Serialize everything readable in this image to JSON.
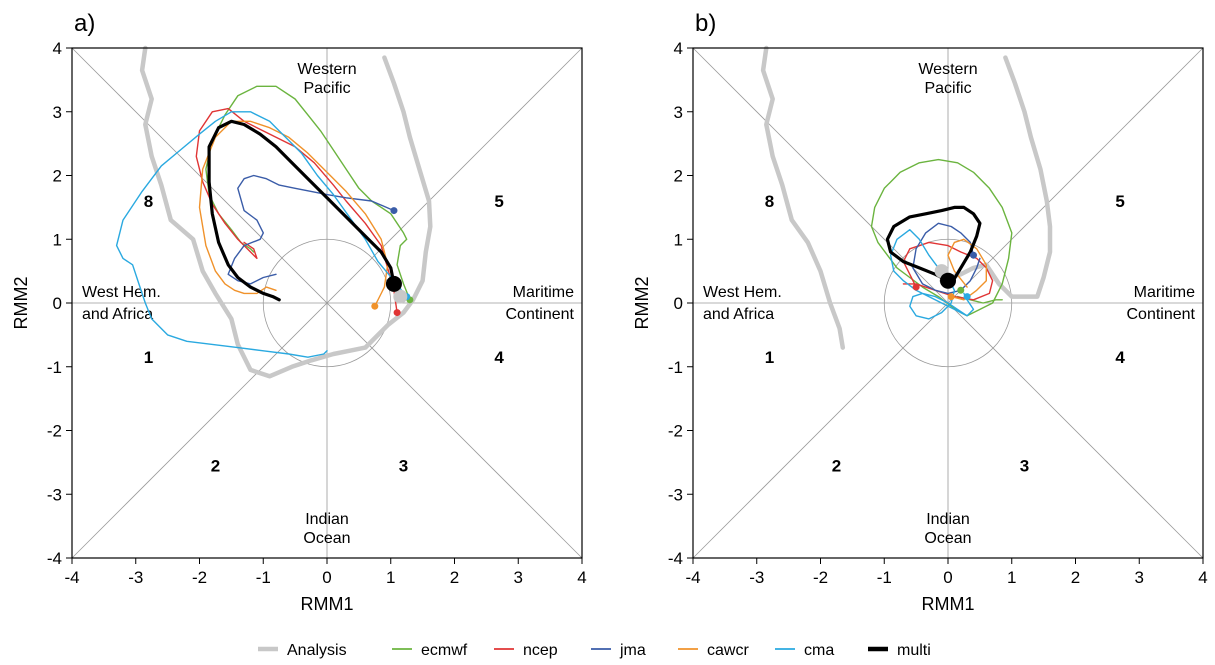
{
  "legend": [
    {
      "name": "Analysis",
      "color": "#c8c8c8",
      "width": "thick"
    },
    {
      "name": "ecmwf",
      "color": "#6bb43f",
      "width": "thin"
    },
    {
      "name": "ncep",
      "color": "#e03535",
      "width": "thin"
    },
    {
      "name": "jma",
      "color": "#3a5ca8",
      "width": "thin"
    },
    {
      "name": "cawcr",
      "color": "#f0922b",
      "width": "thin"
    },
    {
      "name": "cma",
      "color": "#2aa9e0",
      "width": "thin"
    },
    {
      "name": "multi",
      "color": "#000000",
      "width": "thick"
    }
  ],
  "chart_data": [
    {
      "type": "line",
      "panel_label": "a)",
      "xlabel": "RMM1",
      "ylabel": "RMM2",
      "xlim": [
        -4,
        4
      ],
      "ylim": [
        -4,
        4
      ],
      "xticks": [
        -4,
        -3,
        -2,
        -1,
        0,
        1,
        2,
        3,
        4
      ],
      "yticks": [
        -4,
        -3,
        -2,
        -1,
        0,
        1,
        2,
        3,
        4
      ],
      "region_labels": {
        "top": [
          "Western",
          "Pacific"
        ],
        "bottom": [
          "Indian",
          "Ocean"
        ],
        "left": [
          "West Hem.",
          "and Africa"
        ],
        "right": [
          "Maritime",
          "Continent"
        ]
      },
      "phase_numbers": [
        {
          "label": "1",
          "x": -2.8,
          "y": -0.85
        },
        {
          "label": "2",
          "x": -1.75,
          "y": -2.55
        },
        {
          "label": "3",
          "x": 1.2,
          "y": -2.55
        },
        {
          "label": "4",
          "x": 2.7,
          "y": -0.85
        },
        {
          "label": "5",
          "x": 2.7,
          "y": 1.6
        },
        {
          "label": "8",
          "x": -2.8,
          "y": 1.6
        }
      ],
      "series": [
        {
          "name": "Analysis",
          "x": [
            -2.85,
            -2.9,
            -2.75,
            -2.85,
            -2.75,
            -2.6,
            -2.45,
            -2.1,
            -1.95,
            -1.75,
            -1.5,
            -1.4,
            -1.2,
            -0.9,
            -0.55,
            -0.25,
            0.1,
            0.35,
            0.6,
            0.75,
            0.95,
            1.2,
            1.35,
            1.5,
            1.55,
            1.62,
            1.6,
            1.45,
            1.3,
            1.2,
            1.05,
            0.9
          ],
          "y": [
            4.0,
            3.65,
            3.2,
            2.8,
            2.3,
            1.85,
            1.3,
            1.0,
            0.5,
            0.15,
            -0.25,
            -0.65,
            -1.05,
            -1.15,
            -1.0,
            -0.9,
            -0.8,
            -0.75,
            -0.7,
            -0.55,
            -0.35,
            -0.15,
            0.05,
            0.35,
            0.8,
            1.2,
            1.6,
            2.1,
            2.6,
            3.0,
            3.45,
            3.85
          ]
        },
        {
          "name": "ecmwf",
          "x": [
            1.3,
            1.2,
            1.1,
            1.15,
            1.25,
            1.2,
            1.0,
            0.7,
            0.5,
            0.3,
            0.1,
            -0.1,
            -0.3,
            -0.5,
            -0.8,
            -1.1,
            -1.4,
            -1.6,
            -1.8,
            -1.9,
            -1.85,
            -1.7,
            -1.5,
            -1.35,
            -1.2,
            -1.15
          ],
          "y": [
            0.05,
            0.3,
            0.6,
            0.9,
            1.0,
            1.1,
            1.4,
            1.6,
            1.8,
            2.1,
            2.4,
            2.7,
            2.95,
            3.2,
            3.4,
            3.4,
            3.25,
            2.95,
            2.55,
            2.1,
            1.7,
            1.4,
            1.15,
            0.95,
            0.85,
            0.8
          ]
        },
        {
          "name": "ncep",
          "x": [
            1.1,
            1.05,
            0.95,
            0.85,
            0.6,
            0.3,
            0.1,
            -0.2,
            -0.5,
            -0.8,
            -1.1,
            -1.3,
            -1.55,
            -1.8,
            -2.0,
            -2.05,
            -1.95,
            -1.8,
            -1.6,
            -1.4,
            -1.25,
            -1.1,
            -1.15,
            -1.3
          ],
          "y": [
            -0.15,
            0.2,
            0.55,
            0.9,
            1.25,
            1.6,
            1.85,
            2.2,
            2.45,
            2.6,
            2.75,
            2.85,
            3.05,
            3.0,
            2.7,
            2.3,
            1.9,
            1.55,
            1.25,
            1.0,
            0.85,
            0.7,
            0.85,
            0.95
          ]
        },
        {
          "name": "jma",
          "x": [
            1.05,
            0.7,
            0.3,
            0.0,
            -0.25,
            -0.5,
            -0.75,
            -0.95,
            -1.15,
            -1.3,
            -1.4,
            -1.3,
            -1.1,
            -1.0,
            -1.05,
            -1.3,
            -1.45,
            -1.55,
            -1.4,
            -1.2,
            -1.0,
            -0.8
          ],
          "y": [
            1.45,
            1.6,
            1.65,
            1.7,
            1.75,
            1.8,
            1.85,
            1.95,
            2.0,
            1.95,
            1.8,
            1.45,
            1.3,
            1.1,
            1.0,
            0.9,
            0.7,
            0.45,
            0.35,
            0.3,
            0.4,
            0.45
          ]
        },
        {
          "name": "cawcr",
          "x": [
            0.75,
            0.9,
            0.95,
            0.85,
            0.6,
            0.3,
            0.0,
            -0.3,
            -0.6,
            -0.9,
            -1.2,
            -1.5,
            -1.75,
            -1.95,
            -2.0,
            -1.9,
            -1.75,
            -1.6,
            -1.45,
            -1.3,
            -1.1,
            -0.95,
            -0.8
          ],
          "y": [
            -0.05,
            0.25,
            0.6,
            1.0,
            1.4,
            1.75,
            2.05,
            2.35,
            2.6,
            2.75,
            2.85,
            2.85,
            2.6,
            2.1,
            1.5,
            0.9,
            0.5,
            0.3,
            0.2,
            0.15,
            0.15,
            0.25,
            0.2
          ]
        },
        {
          "name": "cma",
          "x": [
            1.25,
            1.05,
            0.8,
            0.6,
            0.35,
            0.1,
            -0.15,
            -0.4,
            -0.65,
            -0.9,
            -1.2,
            -1.5,
            -1.75,
            -2.0,
            -2.3,
            -2.6,
            -2.9,
            -3.2,
            -3.3,
            -3.2,
            -3.05,
            -2.95,
            -2.85,
            -2.75,
            -2.5,
            -2.2,
            -1.8,
            -1.4,
            -1.0,
            -0.6,
            -0.3,
            -0.05,
            0.0
          ],
          "y": [
            0.1,
            0.35,
            0.65,
            1.0,
            1.35,
            1.7,
            2.0,
            2.35,
            2.6,
            2.85,
            3.0,
            3.0,
            2.85,
            2.65,
            2.4,
            2.15,
            1.75,
            1.3,
            0.9,
            0.7,
            0.6,
            0.3,
            0.0,
            -0.25,
            -0.5,
            -0.6,
            -0.65,
            -0.7,
            -0.75,
            -0.8,
            -0.85,
            -0.8,
            -0.75
          ]
        },
        {
          "name": "multi",
          "x": [
            1.05,
            1.0,
            0.85,
            0.6,
            0.3,
            0.0,
            -0.3,
            -0.55,
            -0.8,
            -1.05,
            -1.3,
            -1.5,
            -1.7,
            -1.85,
            -1.85,
            -1.8,
            -1.7,
            -1.55,
            -1.4,
            -1.2,
            -1.0,
            -0.85,
            -0.75
          ],
          "y": [
            0.3,
            0.55,
            0.8,
            1.05,
            1.35,
            1.65,
            1.95,
            2.2,
            2.45,
            2.65,
            2.8,
            2.85,
            2.75,
            2.45,
            1.9,
            1.4,
            0.95,
            0.6,
            0.4,
            0.25,
            0.15,
            0.1,
            0.05
          ]
        }
      ],
      "start_points": [
        {
          "name": "ecmwf",
          "x": 1.3,
          "y": 0.05
        },
        {
          "name": "ncep",
          "x": 1.1,
          "y": -0.15
        },
        {
          "name": "jma",
          "x": 1.05,
          "y": 1.45
        },
        {
          "name": "cawcr",
          "x": 0.75,
          "y": -0.05
        },
        {
          "name": "cma",
          "x": 1.25,
          "y": 0.1
        },
        {
          "name": "Analysis",
          "x": 1.15,
          "y": 0.1
        },
        {
          "name": "multi",
          "x": 1.05,
          "y": 0.3
        }
      ]
    },
    {
      "type": "line",
      "panel_label": "b)",
      "xlabel": "RMM1",
      "ylabel": "RMM2",
      "xlim": [
        -4,
        4
      ],
      "ylim": [
        -4,
        4
      ],
      "xticks": [
        -4,
        -3,
        -2,
        -1,
        0,
        1,
        2,
        3,
        4
      ],
      "yticks": [
        -4,
        -3,
        -2,
        -1,
        0,
        1,
        2,
        3,
        4
      ],
      "region_labels": {
        "top": [
          "Western",
          "Pacific"
        ],
        "bottom": [
          "Indian",
          "Ocean"
        ],
        "left": [
          "West Hem.",
          "and Africa"
        ],
        "right": [
          "Maritime",
          "Continent"
        ]
      },
      "phase_numbers": [
        {
          "label": "1",
          "x": -2.8,
          "y": -0.85
        },
        {
          "label": "2",
          "x": -1.75,
          "y": -2.55
        },
        {
          "label": "3",
          "x": 1.2,
          "y": -2.55
        },
        {
          "label": "4",
          "x": 2.7,
          "y": -0.85
        },
        {
          "label": "5",
          "x": 2.7,
          "y": 1.6
        },
        {
          "label": "8",
          "x": -2.8,
          "y": 1.6
        }
      ],
      "series": [
        {
          "name": "Analysis",
          "x": [
            -2.85,
            -2.9,
            -2.75,
            -2.85,
            -2.75,
            -2.6,
            -2.45,
            -2.2,
            -2.0,
            -1.85,
            -1.7,
            -1.65
          ],
          "y": [
            4.0,
            3.65,
            3.2,
            2.8,
            2.3,
            1.85,
            1.3,
            0.95,
            0.5,
            0.0,
            -0.4,
            -0.7
          ]
        },
        {
          "name": "Analysis",
          "x": [
            0.9,
            1.05,
            1.2,
            1.3,
            1.45,
            1.55,
            1.6,
            1.6,
            1.5,
            1.4,
            1.2,
            1.0,
            0.8,
            0.6,
            0.4,
            0.2,
            0.0,
            -0.1
          ],
          "y": [
            3.85,
            3.45,
            3.0,
            2.6,
            2.1,
            1.6,
            1.2,
            0.8,
            0.4,
            0.1,
            0.1,
            0.1,
            0.3,
            0.6,
            0.55,
            0.45,
            0.4,
            0.35
          ]
        },
        {
          "name": "ecmwf",
          "x": [
            0.3,
            0.5,
            0.7,
            0.85,
            0.95,
            1.0,
            0.85,
            0.65,
            0.4,
            0.15,
            -0.15,
            -0.45,
            -0.75,
            -1.0,
            -1.15,
            -1.2,
            -1.1,
            -0.95,
            -0.8,
            -0.6,
            -0.4,
            -0.15,
            0.05,
            0.2,
            0.3
          ],
          "y": [
            -0.2,
            -0.1,
            0.0,
            0.3,
            0.7,
            1.1,
            1.5,
            1.8,
            2.05,
            2.2,
            2.25,
            2.2,
            2.05,
            1.8,
            1.5,
            1.2,
            0.95,
            0.75,
            0.55,
            0.4,
            0.25,
            0.1,
            -0.05,
            -0.15,
            -0.2
          ]
        },
        {
          "name": "ecmwf",
          "x": [
            0.15,
            0.35,
            0.55,
            0.75,
            0.85
          ],
          "y": [
            0.1,
            0.05,
            0.0,
            0.05,
            0.05
          ]
        },
        {
          "name": "ncep",
          "x": [
            -0.5,
            -0.6,
            -0.7,
            -0.6,
            -0.3,
            0.0,
            0.2,
            0.45,
            0.6,
            0.7,
            0.65,
            0.4,
            0.1,
            -0.2,
            -0.5,
            -0.7
          ],
          "y": [
            0.25,
            0.45,
            0.65,
            0.85,
            0.95,
            0.9,
            0.8,
            0.7,
            0.55,
            0.35,
            0.15,
            0.05,
            0.1,
            0.2,
            0.3,
            0.3
          ]
        },
        {
          "name": "jma",
          "x": [
            0.4,
            0.35,
            0.2,
            0.05,
            -0.15,
            -0.35,
            -0.5,
            -0.55,
            -0.4,
            -0.2,
            0.0,
            0.2,
            0.35,
            0.45,
            0.5
          ],
          "y": [
            0.75,
            0.95,
            1.1,
            1.2,
            1.25,
            1.1,
            0.85,
            0.55,
            0.3,
            0.2,
            0.15,
            0.2,
            0.35,
            0.55,
            0.7
          ]
        },
        {
          "name": "cawcr",
          "x": [
            0.05,
            0.25,
            0.45,
            0.6,
            0.6,
            0.45,
            0.25,
            0.1,
            0.0,
            0.1,
            0.3
          ],
          "y": [
            0.1,
            0.05,
            0.2,
            0.35,
            0.6,
            0.85,
            1.0,
            0.95,
            0.75,
            0.5,
            0.25
          ]
        },
        {
          "name": "cma",
          "x": [
            0.3,
            0.1,
            -0.1,
            -0.3,
            -0.5,
            -0.7,
            -0.85,
            -0.9,
            -0.8,
            -0.6,
            -0.45,
            -0.3,
            -0.15,
            0.0,
            0.1,
            0.05,
            -0.1,
            -0.3,
            -0.5,
            -0.6,
            -0.55,
            -0.4,
            -0.2,
            0.0,
            0.15,
            0.3,
            0.4,
            0.3,
            0.25
          ],
          "y": [
            -0.2,
            -0.1,
            0.0,
            0.1,
            0.2,
            0.35,
            0.5,
            0.75,
            1.0,
            1.15,
            1.0,
            0.75,
            0.55,
            0.4,
            0.2,
            0.0,
            -0.15,
            -0.25,
            -0.2,
            -0.05,
            0.1,
            0.15,
            0.1,
            0.0,
            -0.1,
            -0.2,
            -0.1,
            0.05,
            0.15
          ]
        },
        {
          "name": "multi",
          "x": [
            0.05,
            0.2,
            0.35,
            0.45,
            0.5,
            0.4,
            0.25,
            0.1,
            -0.1,
            -0.35,
            -0.6,
            -0.85,
            -0.95,
            -0.9,
            -0.7,
            -0.45,
            -0.2,
            0.0
          ],
          "y": [
            0.3,
            0.55,
            0.8,
            1.05,
            1.25,
            1.4,
            1.5,
            1.5,
            1.45,
            1.4,
            1.35,
            1.2,
            1.0,
            0.8,
            0.65,
            0.55,
            0.45,
            0.35
          ]
        }
      ],
      "start_points": [
        {
          "name": "ncep",
          "x": -0.5,
          "y": 0.25
        },
        {
          "name": "jma",
          "x": 0.4,
          "y": 0.75
        },
        {
          "name": "ecmwf",
          "x": 0.2,
          "y": 0.2
        },
        {
          "name": "cawcr",
          "x": 0.05,
          "y": 0.1
        },
        {
          "name": "cma",
          "x": 0.3,
          "y": 0.1
        },
        {
          "name": "Analysis",
          "x": -0.1,
          "y": 0.5
        },
        {
          "name": "multi",
          "x": 0.0,
          "y": 0.35
        }
      ]
    }
  ]
}
